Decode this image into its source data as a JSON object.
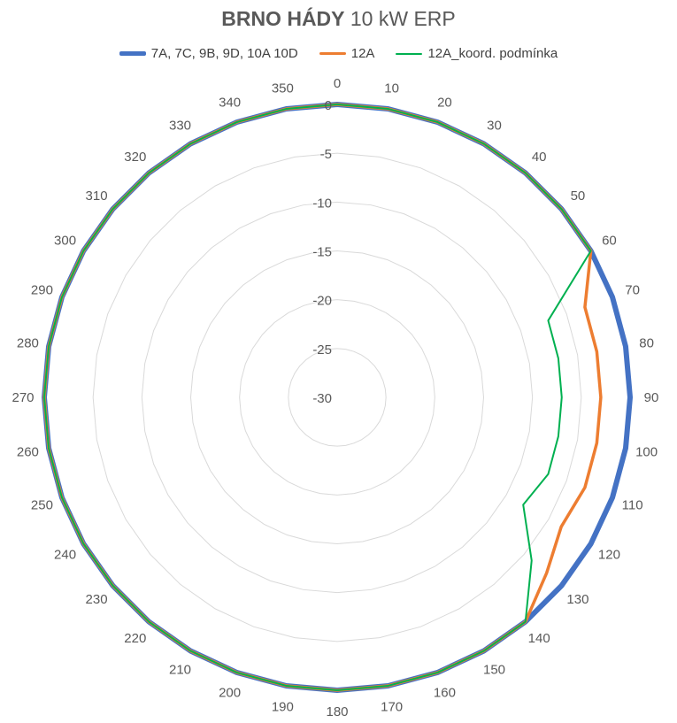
{
  "title": {
    "bold": "BRNO HÁDY",
    "rest": " 10 kW ERP"
  },
  "chart_data": {
    "type": "radar",
    "title": "BRNO HÁDY 10 kW ERP",
    "categories": [
      "0",
      "10",
      "20",
      "30",
      "40",
      "50",
      "60",
      "70",
      "80",
      "90",
      "100",
      "110",
      "120",
      "130",
      "140",
      "150",
      "160",
      "170",
      "180",
      "190",
      "200",
      "210",
      "220",
      "230",
      "240",
      "250",
      "260",
      "270",
      "280",
      "290",
      "300",
      "310",
      "320",
      "330",
      "340",
      "350"
    ],
    "radial_ticks": [
      "0",
      "-5",
      "-10",
      "-15",
      "-20",
      "-25",
      "-30"
    ],
    "rlim": [
      -30,
      0
    ],
    "legend_position": "top",
    "grid": true,
    "series": [
      {
        "name": "7A, 7C, 9B, 9D, 10A 10D",
        "color": "#4472C4",
        "values": [
          0,
          0,
          0,
          0,
          0,
          0,
          0,
          0,
          0,
          0,
          0,
          0,
          0,
          0,
          0,
          0,
          0,
          0,
          0,
          0,
          0,
          0,
          0,
          0,
          0,
          0,
          0,
          0,
          0,
          0,
          0,
          0,
          0,
          0,
          0,
          0
        ]
      },
      {
        "name": "12A",
        "color": "#ED7D31",
        "values": [
          0,
          0,
          0,
          0,
          0,
          0,
          0,
          -3,
          -3,
          -3,
          -3,
          -3,
          -3.5,
          -2,
          0,
          0,
          0,
          0,
          0,
          0,
          0,
          0,
          0,
          0,
          0,
          0,
          0,
          0,
          0,
          0,
          0,
          0,
          0,
          0,
          0,
          0
        ]
      },
      {
        "name": "12A_koord. podmínka",
        "color": "#00B050",
        "values": [
          0,
          0,
          0,
          0,
          0,
          0,
          0,
          -7,
          -7,
          -7,
          -7,
          -7,
          -8,
          -4,
          0,
          0,
          0,
          0,
          0,
          0,
          0,
          0,
          0,
          0,
          0,
          0,
          0,
          0,
          0,
          0,
          0,
          0,
          0,
          0,
          0,
          0
        ]
      }
    ]
  }
}
